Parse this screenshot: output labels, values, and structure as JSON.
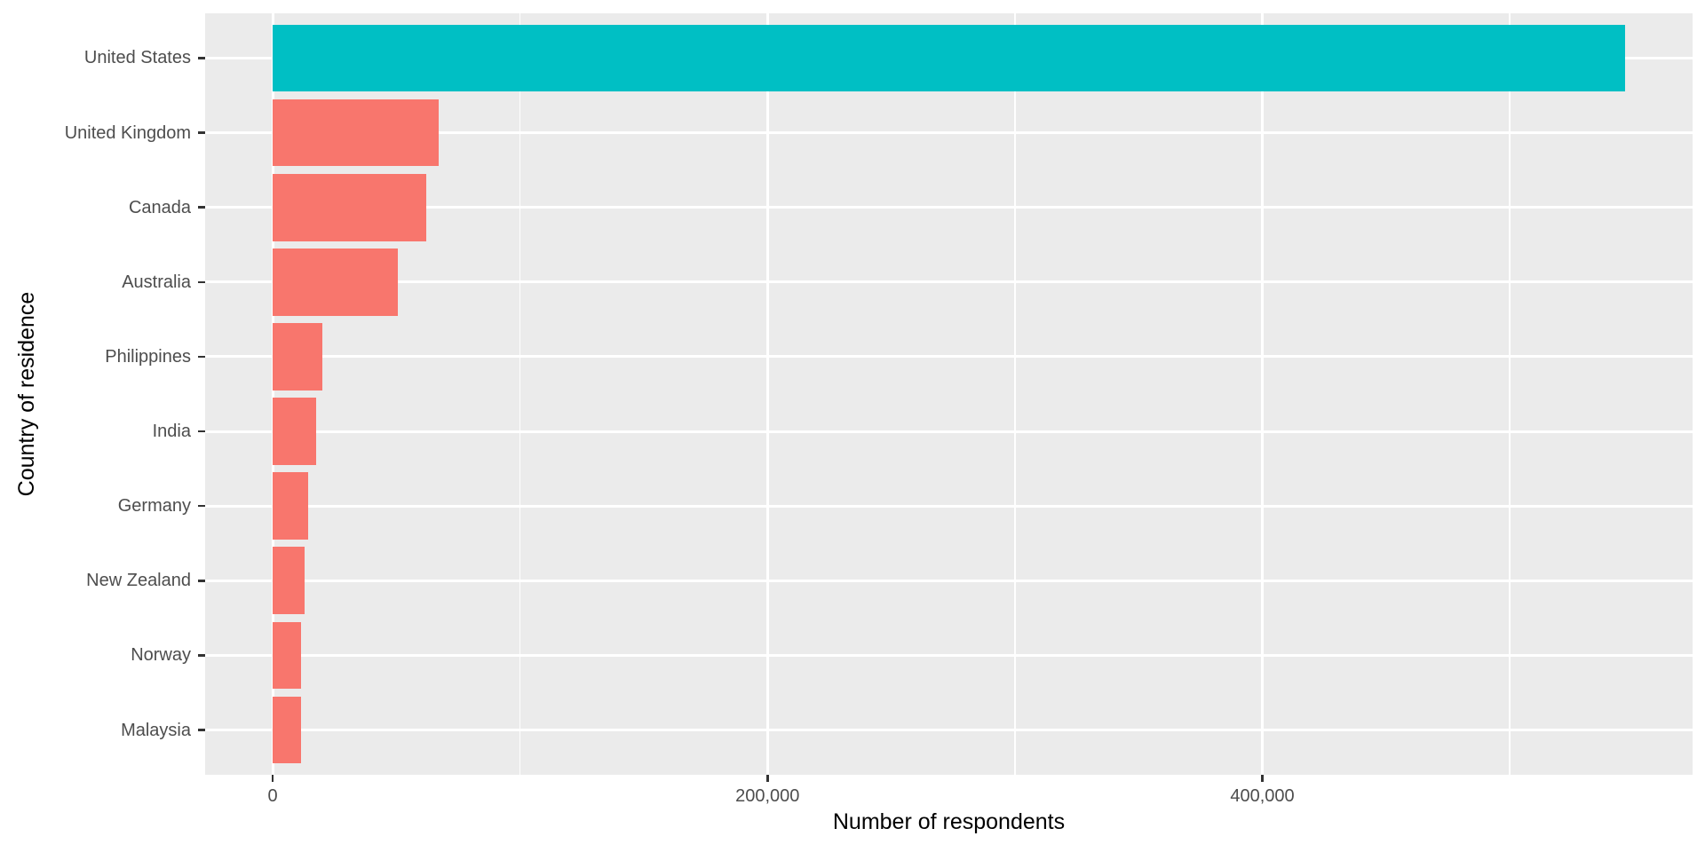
{
  "chart_data": {
    "type": "bar",
    "orientation": "horizontal",
    "title": "",
    "xlabel": "Number of respondents",
    "ylabel": "Country of residence",
    "categories": [
      "United States",
      "United Kingdom",
      "Canada",
      "Australia",
      "Philippines",
      "India",
      "Germany",
      "New Zealand",
      "Norway",
      "Malaysia"
    ],
    "values": [
      546500,
      67000,
      61900,
      50600,
      20000,
      17700,
      14200,
      13000,
      11600,
      11500
    ],
    "bar_colors": [
      "#00BFC4",
      "#F8766D",
      "#F8766D",
      "#F8766D",
      "#F8766D",
      "#F8766D",
      "#F8766D",
      "#F8766D",
      "#F8766D",
      "#F8766D"
    ],
    "x_ticks": [
      {
        "value": 0,
        "label": "0"
      },
      {
        "value": 200000,
        "label": "200,000"
      },
      {
        "value": 400000,
        "label": "400,000"
      }
    ],
    "x_minor_gridlines": [
      100000,
      300000,
      500000
    ],
    "xlim": [
      -27300,
      573900
    ],
    "bar_width_fraction": 0.9,
    "legend": "none",
    "grid": "white major and minor gridlines on gray panel",
    "style": {
      "panel_bg": "#EBEBEB",
      "grid_color": "#FFFFFF",
      "axis_text_color": "#4D4D4D",
      "axis_title_color": "#000000",
      "tick_mark_color": "#333333",
      "highlight_color": "#00BFC4",
      "base_color": "#F8766D",
      "background": "#FFFFFF"
    }
  }
}
